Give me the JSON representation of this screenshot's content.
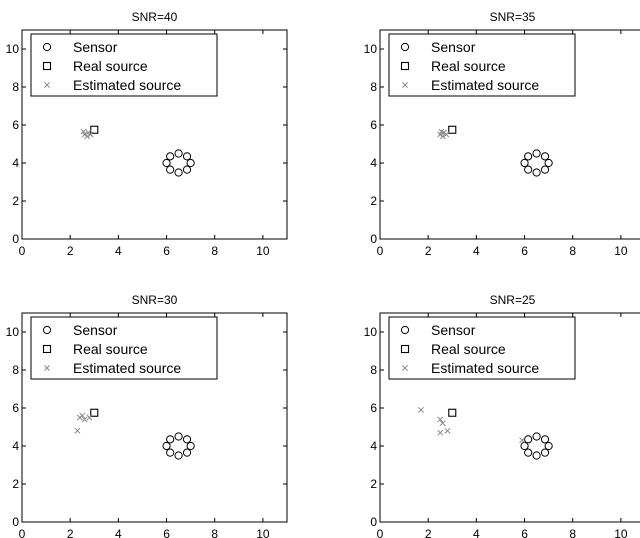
{
  "chart_data": [
    {
      "type": "scatter",
      "title": "SNR=40",
      "xlim": [
        0,
        11
      ],
      "ylim": [
        0,
        11
      ],
      "xticks": [
        0,
        2,
        4,
        6,
        8,
        10
      ],
      "yticks": [
        0,
        2,
        4,
        6,
        8,
        10
      ],
      "legend": [
        "Sensor",
        "Real source",
        "Estimated source"
      ],
      "legend_position": "top-left",
      "sensors": [
        [
          7.0,
          4.0
        ],
        [
          6.85,
          4.35
        ],
        [
          6.5,
          4.5
        ],
        [
          6.15,
          4.35
        ],
        [
          6.0,
          4.0
        ],
        [
          6.15,
          3.65
        ],
        [
          6.5,
          3.5
        ],
        [
          6.85,
          3.65
        ]
      ],
      "real_source": [
        3.0,
        5.75
      ],
      "estimated_sources": [
        [
          2.6,
          5.5
        ],
        [
          2.75,
          5.6
        ],
        [
          2.7,
          5.4
        ],
        [
          2.55,
          5.65
        ],
        [
          2.85,
          5.5
        ]
      ]
    },
    {
      "type": "scatter",
      "title": "SNR=35",
      "xlim": [
        0,
        11
      ],
      "ylim": [
        0,
        11
      ],
      "xticks": [
        0,
        2,
        4,
        6,
        8,
        10
      ],
      "yticks": [
        0,
        2,
        4,
        6,
        8,
        10
      ],
      "legend": [
        "Sensor",
        "Real source",
        "Estimated source"
      ],
      "legend_position": "top-left",
      "sensors": [
        [
          7.0,
          4.0
        ],
        [
          6.85,
          4.35
        ],
        [
          6.5,
          4.5
        ],
        [
          6.15,
          4.35
        ],
        [
          6.0,
          4.0
        ],
        [
          6.15,
          3.65
        ],
        [
          6.5,
          3.5
        ],
        [
          6.85,
          3.65
        ]
      ],
      "real_source": [
        3.0,
        5.75
      ],
      "estimated_sources": [
        [
          2.5,
          5.5
        ],
        [
          2.65,
          5.6
        ],
        [
          2.6,
          5.4
        ],
        [
          2.75,
          5.5
        ],
        [
          2.55,
          5.65
        ]
      ]
    },
    {
      "type": "scatter",
      "title": "SNR=30",
      "xlim": [
        0,
        11
      ],
      "ylim": [
        0,
        11
      ],
      "xticks": [
        0,
        2,
        4,
        6,
        8,
        10
      ],
      "yticks": [
        0,
        2,
        4,
        6,
        8,
        10
      ],
      "legend": [
        "Sensor",
        "Real source",
        "Estimated source"
      ],
      "legend_position": "top-left",
      "sensors": [
        [
          7.0,
          4.0
        ],
        [
          6.85,
          4.35
        ],
        [
          6.5,
          4.5
        ],
        [
          6.15,
          4.35
        ],
        [
          6.0,
          4.0
        ],
        [
          6.15,
          3.65
        ],
        [
          6.5,
          3.5
        ],
        [
          6.85,
          3.65
        ]
      ],
      "real_source": [
        3.0,
        5.75
      ],
      "estimated_sources": [
        [
          2.4,
          5.5
        ],
        [
          2.6,
          5.4
        ],
        [
          2.8,
          5.5
        ],
        [
          2.5,
          5.6
        ],
        [
          2.3,
          4.8
        ]
      ]
    },
    {
      "type": "scatter",
      "title": "SNR=25",
      "xlim": [
        0,
        11
      ],
      "ylim": [
        0,
        11
      ],
      "xticks": [
        0,
        2,
        4,
        6,
        8,
        10
      ],
      "yticks": [
        0,
        2,
        4,
        6,
        8,
        10
      ],
      "legend": [
        "Sensor",
        "Real source",
        "Estimated source"
      ],
      "legend_position": "top-left",
      "sensors": [
        [
          7.0,
          4.0
        ],
        [
          6.85,
          4.35
        ],
        [
          6.5,
          4.5
        ],
        [
          6.15,
          4.35
        ],
        [
          6.0,
          4.0
        ],
        [
          6.15,
          3.65
        ],
        [
          6.5,
          3.5
        ],
        [
          6.85,
          3.65
        ]
      ],
      "real_source": [
        3.0,
        5.75
      ],
      "estimated_sources": [
        [
          1.7,
          5.9
        ],
        [
          2.5,
          5.4
        ],
        [
          2.6,
          5.2
        ],
        [
          2.5,
          4.7
        ],
        [
          2.8,
          4.8
        ],
        [
          5.9,
          4.3
        ]
      ]
    }
  ]
}
